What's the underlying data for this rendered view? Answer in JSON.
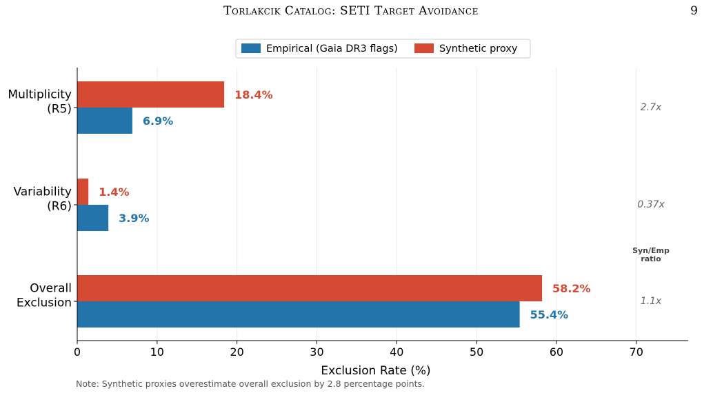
{
  "header": {
    "running_title": "Torlakcik Catalog: SETI Target Avoidance",
    "page_number": "9"
  },
  "chart_data": {
    "type": "bar",
    "orientation": "horizontal",
    "categories": [
      "Multiplicity\n(R5)",
      "Variability\n(R6)",
      "Overall\nExclusion"
    ],
    "series": [
      {
        "name": "Empirical (Gaia DR3 flags)",
        "color": "#2374ab",
        "values": [
          6.9,
          3.9,
          55.4
        ],
        "labels": [
          "6.9%",
          "3.9%",
          "55.4%"
        ]
      },
      {
        "name": "Synthetic proxy",
        "color": "#d64933",
        "values": [
          18.4,
          1.4,
          58.2
        ],
        "labels": [
          "18.4%",
          "1.4%",
          "58.2%"
        ]
      }
    ],
    "ratios": [
      "2.7x",
      "0.37x",
      "1.1x"
    ],
    "ratio_label": "Syn/Emp\nratio",
    "xlabel": "Exclusion Rate (%)",
    "ylabel": "",
    "xlim": [
      0,
      76.5
    ],
    "xticks": [
      0,
      10,
      20,
      30,
      40,
      50,
      60,
      70
    ],
    "grid": "vertical",
    "legend_position": "top-center"
  },
  "note": "Note: Synthetic proxies overestimate overall exclusion by 2.8 percentage points."
}
